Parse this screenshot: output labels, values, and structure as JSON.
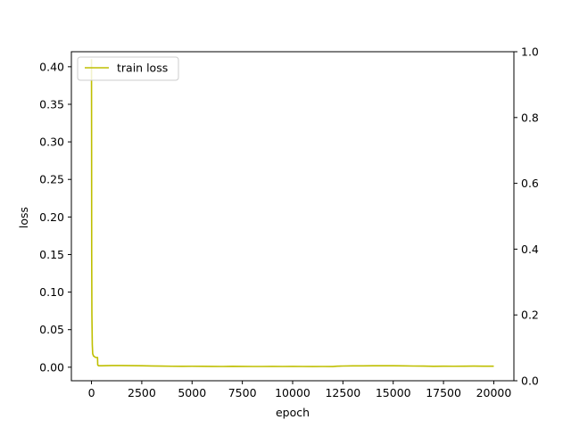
{
  "chart_data": {
    "type": "line",
    "title": "",
    "xlabel": "epoch",
    "ylabel": "loss",
    "xlim": [
      -1000,
      21000
    ],
    "ylim": [
      -0.018,
      0.42
    ],
    "y2lim": [
      0,
      1.0
    ],
    "xticks": [
      0,
      2500,
      5000,
      7500,
      10000,
      12500,
      15000,
      17500,
      20000
    ],
    "xtick_labels": [
      "0",
      "2500",
      "5000",
      "7500",
      "10000",
      "12500",
      "15000",
      "17500",
      "20000"
    ],
    "yticks": [
      0.0,
      0.05,
      0.1,
      0.15,
      0.2,
      0.25,
      0.3,
      0.35,
      0.4
    ],
    "ytick_labels": [
      "0.00",
      "0.05",
      "0.10",
      "0.15",
      "0.20",
      "0.25",
      "0.30",
      "0.35",
      "0.40"
    ],
    "y2ticks": [
      0.0,
      0.2,
      0.4,
      0.6,
      0.8,
      1.0
    ],
    "y2tick_labels": [
      "0.0",
      "0.2",
      "0.4",
      "0.6",
      "0.8",
      "1.0"
    ],
    "grid": false,
    "legend_position": "top-left",
    "series": [
      {
        "name": "train loss",
        "color": "#bfbf00",
        "x": [
          0,
          5,
          10,
          20,
          40,
          60,
          100,
          150,
          200,
          250,
          300,
          310,
          350,
          400,
          500,
          1000,
          1500,
          2000,
          2500,
          3000,
          3500,
          4000,
          4500,
          5000,
          5500,
          6000,
          6500,
          7000,
          7500,
          8000,
          8500,
          9000,
          9500,
          10000,
          10500,
          11000,
          11500,
          12000,
          12200,
          12500,
          13000,
          13500,
          14000,
          14500,
          15000,
          15500,
          16000,
          16500,
          17000,
          17500,
          18000,
          18500,
          19000,
          19500,
          20000
        ],
        "y": [
          0.41,
          0.3,
          0.15,
          0.07,
          0.03,
          0.018,
          0.015,
          0.014,
          0.013,
          0.013,
          0.013,
          0.003,
          0.002,
          0.002,
          0.002,
          0.0022,
          0.0022,
          0.0021,
          0.002,
          0.0017,
          0.0015,
          0.0013,
          0.0012,
          0.0013,
          0.0012,
          0.0011,
          0.001,
          0.0012,
          0.0011,
          0.001,
          0.001,
          0.0011,
          0.001,
          0.0011,
          0.001,
          0.0009,
          0.001,
          0.0009,
          0.0014,
          0.0016,
          0.0018,
          0.0018,
          0.0019,
          0.002,
          0.0019,
          0.0018,
          0.0016,
          0.0015,
          0.0012,
          0.0014,
          0.0013,
          0.0014,
          0.0015,
          0.0014,
          0.0014
        ]
      }
    ]
  }
}
